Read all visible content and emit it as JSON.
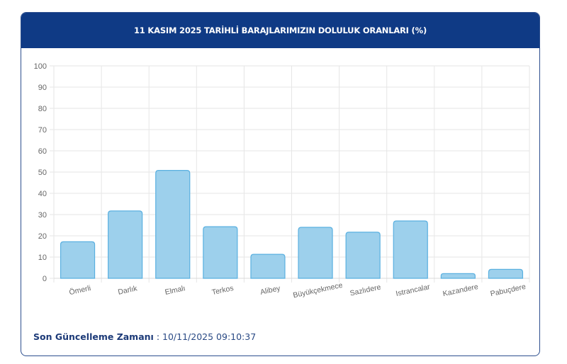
{
  "header": {
    "title": "11 KASIM 2025 TARİHLİ BARAJLARIMIZIN DOLULUK ORANLARI (%)"
  },
  "footer": {
    "label": "Son Güncelleme Zamanı",
    "separator": " : ",
    "value": "10/11/2025 09:10:37"
  },
  "colors": {
    "header_bg": "#0f3a85",
    "bar_fill": "#9dd0ec",
    "bar_border": "#5ab0e0",
    "grid": "#e6e6e6",
    "footer_text": "#1c3a78"
  },
  "chart_data": {
    "type": "bar",
    "title": "11 KASIM 2025 TARİHLİ BARAJLARIMIZIN DOLULUK ORANLARI (%)",
    "xlabel": "",
    "ylabel": "",
    "categories": [
      "Ömerli",
      "Darlık",
      "Elmalı",
      "Terkos",
      "Alibey",
      "Büyükçekmece",
      "Sazlıdere",
      "Istrancalar",
      "Kazandere",
      "Pabuçdere"
    ],
    "values": [
      17.2,
      31.7,
      50.8,
      24.3,
      11.3,
      24.0,
      21.7,
      27.0,
      2.2,
      4.2
    ],
    "ylim": [
      0,
      100
    ],
    "yticks": [
      0,
      10,
      20,
      30,
      40,
      50,
      60,
      70,
      80,
      90,
      100
    ],
    "grid": true,
    "legend": null
  }
}
